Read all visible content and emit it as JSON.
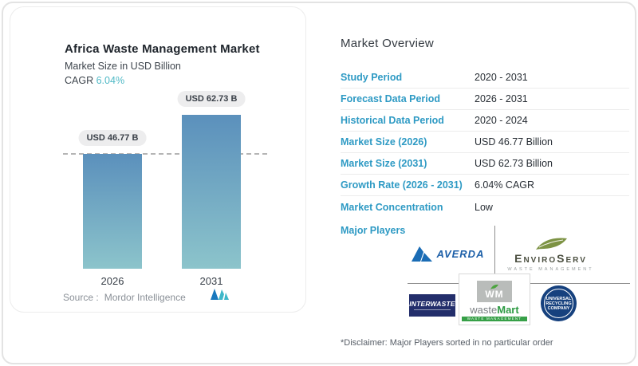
{
  "page": {
    "background": "#ffffff",
    "border_color": "#e3e3e3"
  },
  "chart_card": {
    "title": "Africa Waste Management Market",
    "subtitle": "Market Size in USD Billion",
    "cagr_label": "CAGR",
    "cagr_value": "6.04%",
    "source_label": "Source :",
    "source_name": "Mordor Intelligence"
  },
  "chart_data": {
    "type": "bar",
    "title": "Africa Waste Management Market",
    "ylabel": "Market Size in USD Billion",
    "categories": [
      "2026",
      "2031"
    ],
    "values": [
      46.77,
      62.73
    ],
    "value_labels": [
      "USD 46.77 B",
      "USD 62.73 B"
    ],
    "unit": "USD Billion",
    "cagr_percent": 6.04,
    "ylim": [
      0,
      70
    ],
    "grid": false,
    "legend": false,
    "dashed_reference_value": 46.77,
    "bar_color_top": "#5B90BC",
    "bar_color_bottom": "#8CC4CB"
  },
  "overview": {
    "title": "Market Overview",
    "rows": [
      {
        "label": "Study Period",
        "value": "2020 - 2031"
      },
      {
        "label": "Forecast Data Period",
        "value": "2026 - 2031"
      },
      {
        "label": "Historical Data Period",
        "value": "2020 - 2024"
      },
      {
        "label": "Market Size (2026)",
        "value": "USD 46.77 Billion"
      },
      {
        "label": "Market Size (2031)",
        "value": "USD 62.73 Billion"
      },
      {
        "label": "Growth Rate (2026 - 2031)",
        "value": "6.04% CAGR"
      },
      {
        "label": "Market Concentration",
        "value": "Low"
      }
    ],
    "major_players_label": "Major Players",
    "players": {
      "averda": {
        "name": "Averda",
        "wordmark": "AVERDA"
      },
      "enviroserv": {
        "name": "EnviroServ",
        "wordmark_a": "Enviro",
        "wordmark_b": "Serv",
        "tagline": "WASTE MANAGEMENT"
      },
      "interwaste": {
        "name": "Interwaste",
        "wordmark": "INTERWASTE"
      },
      "wastemart": {
        "name": "wasteMart",
        "monogram": "WM",
        "wordmark_a": "waste",
        "wordmark_b": "Mart",
        "tagline": "WASTE MANAGEMENT SERVICES"
      },
      "urc": {
        "name": "Universal Recycling Company",
        "line1": "UNIVERSAL",
        "line2": "RECYCLING",
        "line3": "COMPANY"
      }
    },
    "disclaimer": "*Disclaimer: Major Players sorted in no particular order"
  },
  "colors": {
    "accent_teal": "#2E9AC4",
    "cagr_teal": "#4FB9C6",
    "bar_top": "#5B90BC",
    "bar_bottom": "#8CC4CB",
    "pill_bg": "#EDEDEE",
    "averda_blue": "#1A6CB5",
    "enviroserv_green": "#7D9344",
    "interwaste_navy": "#232E6B",
    "wastemart_green": "#37A048",
    "urc_navy": "#16417E",
    "mordor_blue": "#1878BE",
    "mordor_teal": "#3EB7C9"
  }
}
